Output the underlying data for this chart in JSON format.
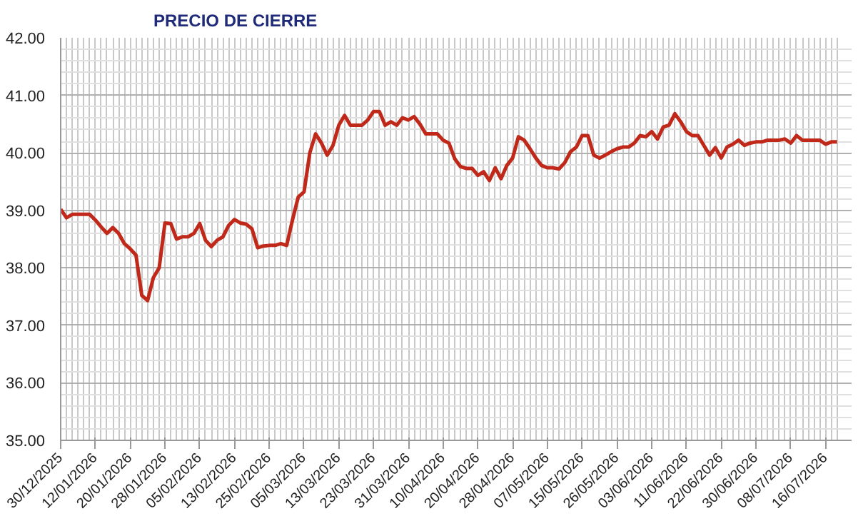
{
  "chart_data": {
    "type": "line",
    "title": "PRECIO DE CIERRE",
    "categories": [
      "30/12/2025",
      null,
      null,
      null,
      null,
      null,
      "12/01/2026",
      null,
      null,
      null,
      null,
      null,
      "20/01/2026",
      null,
      null,
      null,
      null,
      null,
      "28/01/2026",
      null,
      null,
      null,
      null,
      null,
      "05/02/2026",
      null,
      null,
      null,
      null,
      null,
      "13/02/2026",
      null,
      null,
      null,
      null,
      null,
      "25/02/2026",
      null,
      null,
      null,
      null,
      null,
      "05/03/2026",
      null,
      null,
      null,
      null,
      null,
      "13/03/2026",
      null,
      null,
      null,
      null,
      null,
      "23/03/2026",
      null,
      null,
      null,
      null,
      null,
      "31/03/2026",
      null,
      null,
      null,
      null,
      null,
      "10/04/2026",
      null,
      null,
      null,
      null,
      null,
      "20/04/2026",
      null,
      null,
      null,
      null,
      null,
      "28/04/2026",
      null,
      null,
      null,
      null,
      null,
      "07/05/2026",
      null,
      null,
      null,
      null,
      null,
      "15/05/2026",
      null,
      null,
      null,
      null,
      null,
      "26/05/2026",
      null,
      null,
      null,
      null,
      null,
      "03/06/2026",
      null,
      null,
      null,
      null,
      null,
      "11/06/2026",
      null,
      null,
      null,
      null,
      null,
      "22/06/2026",
      null,
      null,
      null,
      null,
      null,
      "30/06/2026",
      null,
      null,
      null,
      null,
      null,
      "08/07/2026",
      null,
      null,
      null,
      null,
      null,
      "16/07/2026",
      null,
      null
    ],
    "series": [
      {
        "color": "#c0281a",
        "values": [
          39.02,
          38.87,
          38.93,
          38.93,
          38.93,
          38.93,
          38.83,
          38.71,
          38.6,
          38.7,
          38.6,
          38.42,
          38.33,
          38.22,
          37.52,
          37.43,
          37.83,
          38.0,
          38.78,
          38.77,
          38.5,
          38.54,
          38.54,
          38.6,
          38.77,
          38.48,
          38.37,
          38.48,
          38.54,
          38.74,
          38.84,
          38.78,
          38.76,
          38.68,
          38.35,
          38.38,
          38.39,
          38.39,
          38.42,
          38.39,
          38.83,
          39.23,
          39.32,
          40.0,
          40.33,
          40.17,
          39.96,
          40.13,
          40.48,
          40.65,
          40.48,
          40.48,
          40.48,
          40.57,
          40.72,
          40.72,
          40.48,
          40.54,
          40.48,
          40.61,
          40.57,
          40.63,
          40.5,
          40.33,
          40.33,
          40.33,
          40.22,
          40.17,
          39.9,
          39.76,
          39.73,
          39.73,
          39.61,
          39.67,
          39.52,
          39.74,
          39.55,
          39.78,
          39.91,
          40.28,
          40.22,
          40.07,
          39.91,
          39.78,
          39.74,
          39.74,
          39.72,
          39.83,
          40.02,
          40.1,
          40.3,
          40.3,
          39.96,
          39.91,
          39.96,
          40.02,
          40.07,
          40.1,
          40.1,
          40.17,
          40.3,
          40.28,
          40.37,
          40.24,
          40.45,
          40.48,
          40.68,
          40.54,
          40.37,
          40.3,
          40.3,
          40.13,
          39.96,
          40.09,
          39.91,
          40.1,
          40.15,
          40.22,
          40.13,
          40.17,
          40.19,
          40.19,
          40.22,
          40.22,
          40.22,
          40.24,
          40.17,
          40.3,
          40.22,
          40.22,
          40.22,
          40.22,
          40.15,
          40.19,
          40.19
        ]
      }
    ],
    "ylim": [
      35,
      42
    ],
    "yticks": [
      {
        "value": 35,
        "label": "35.00"
      },
      {
        "value": 36,
        "label": "36.00"
      },
      {
        "value": 37,
        "label": "37.00"
      },
      {
        "value": 38,
        "label": "38.00"
      },
      {
        "value": 39,
        "label": "39.00"
      },
      {
        "value": 40,
        "label": "40.00"
      },
      {
        "value": 41,
        "label": "41.00"
      },
      {
        "value": 42,
        "label": "42.00"
      }
    ],
    "grid": true,
    "marker": "none",
    "line_style": "solid"
  }
}
